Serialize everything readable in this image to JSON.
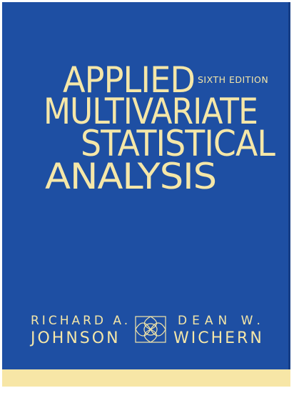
{
  "cover": {
    "title_lines": [
      "APPLIED",
      "MULTIVARIATE",
      "STATISTICAL",
      "ANALYSIS"
    ],
    "edition": "SIXTH EDITION",
    "authors": [
      {
        "first": "RICHARD A.",
        "last": "JOHNSON"
      },
      {
        "first": "DEAN W.",
        "last": "WICHERN"
      }
    ],
    "colors": {
      "background": "#1e4fa3",
      "text": "#f5e7a8",
      "stripe": "#f7e6a6"
    },
    "emblem_icon": "celtic-knot-icon"
  }
}
